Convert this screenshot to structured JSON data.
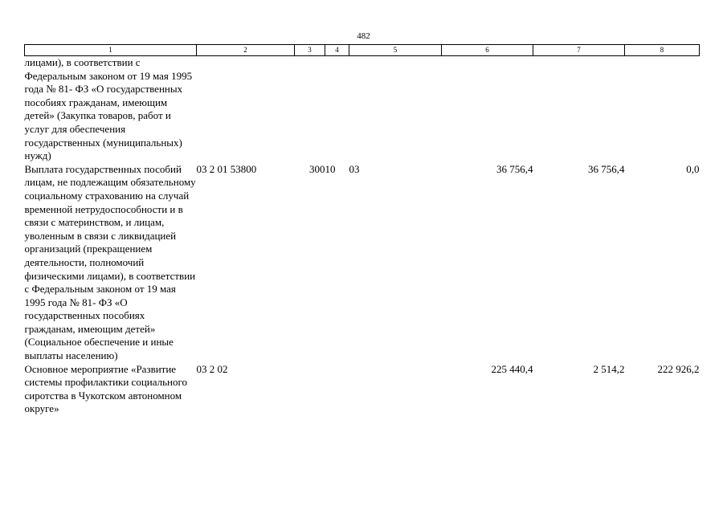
{
  "page_number": "482",
  "column_numbers": [
    "1",
    "2",
    "3",
    "4",
    "5",
    "6",
    "7",
    "8"
  ],
  "rows": [
    {
      "name": "лицами), в соответствии с Федеральным законом от 19 мая 1995 года № 81- ФЗ «О государственных пособиях гражданам, имеющим детей» (Закупка товаров, работ и услуг для обеспечения государственных (муниципальных) нужд)",
      "code": "",
      "vr": "",
      "rz": "",
      "pr": "",
      "total": "",
      "v7": "",
      "v8": ""
    },
    {
      "name": "Выплата государственных пособий лицам, не подлежащим обязательному социальному страхованию на случай временной нетрудоспособности и в связи с материнством, и лицам, уволенным в связи с ликвидацией организаций (прекращением деятельности, полномочий физическими лицами), в соответствии с Федеральным законом от 19 мая 1995 года № 81- ФЗ «О государственных пособиях гражданам, имеющим детей» (Социальное обеспечение и иные выплаты населению)",
      "code": "03 2 01 53800",
      "vr": "300",
      "rz": "10",
      "pr": "03",
      "total": "36 756,4",
      "v7": "36 756,4",
      "v8": "0,0"
    },
    {
      "name": "Основное мероприятие «Развитие системы профилактики социального сиротства в Чукотском автономном округе»",
      "code": "03 2 02",
      "vr": "",
      "rz": "",
      "pr": "",
      "total": "225 440,4",
      "v7": "2 514,2",
      "v8": "222 926,2"
    }
  ]
}
